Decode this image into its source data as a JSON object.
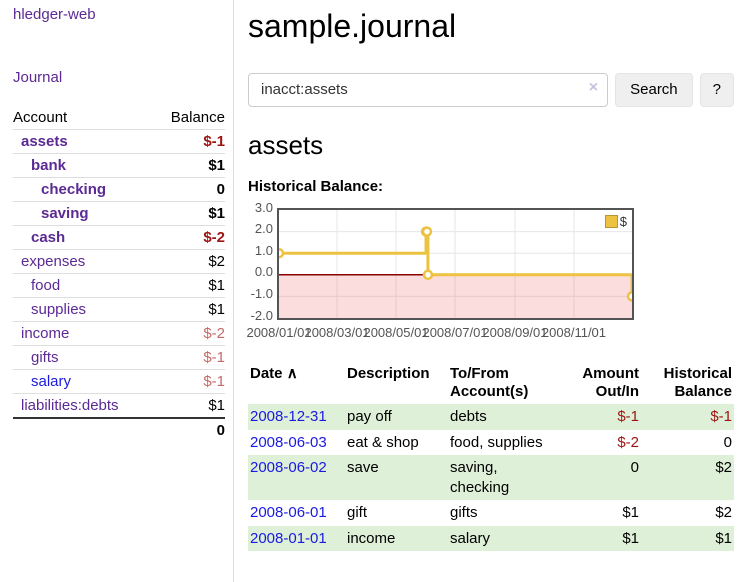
{
  "colors": {
    "purple": "#5b2a94",
    "link_blue": "#1a1ae0",
    "negative": "#9d1414",
    "negative_soft": "#c46a6a",
    "row_green": "#dff0d8",
    "series_gold": "#edc240",
    "negative_region": "rgba(236,98,98,0.22)",
    "zero_line": "#8b0000",
    "chart_border": "#545454",
    "grid": "#e6e6e6"
  },
  "sidebar": {
    "brand": "hledger-web",
    "nav": [
      {
        "label": "Journal"
      }
    ],
    "accounts_table": {
      "headers": [
        "Account",
        "Balance"
      ],
      "rows": [
        {
          "name": "assets",
          "indent": 1,
          "bold": true,
          "balance": "$-1",
          "balance_style": "negative"
        },
        {
          "name": "bank",
          "indent": 2,
          "bold": true,
          "balance": "$1",
          "balance_style": "normal"
        },
        {
          "name": "checking",
          "indent": 3,
          "bold": true,
          "balance": "0",
          "balance_style": "normal"
        },
        {
          "name": "saving",
          "indent": 3,
          "bold": true,
          "balance": "$1",
          "balance_style": "normal"
        },
        {
          "name": "cash",
          "indent": 2,
          "bold": true,
          "balance": "$-2",
          "balance_style": "negative"
        },
        {
          "name": "expenses",
          "indent": 1,
          "bold": false,
          "balance": "$2",
          "balance_style": "normal"
        },
        {
          "name": "food",
          "indent": 2,
          "bold": false,
          "balance": "$1",
          "balance_style": "normal"
        },
        {
          "name": "supplies",
          "indent": 2,
          "bold": false,
          "balance": "$1",
          "balance_style": "normal"
        },
        {
          "name": "income",
          "indent": 1,
          "bold": false,
          "balance": "$-2",
          "balance_style": "negative-soft"
        },
        {
          "name": "gifts",
          "indent": 2,
          "bold": false,
          "balance": "$-1",
          "balance_style": "negative-soft"
        },
        {
          "name": "salary",
          "indent": 2,
          "bold": false,
          "link_style": "blue",
          "balance": "$-1",
          "balance_style": "negative-soft"
        },
        {
          "name": "liabilities:debts",
          "indent": 1,
          "bold": false,
          "balance": "$1",
          "balance_style": "normal"
        }
      ],
      "total": "0"
    }
  },
  "header": {
    "title": "sample.journal"
  },
  "search": {
    "value": "inacct:assets",
    "clear_icon": "×",
    "button": "Search",
    "help_button": "?"
  },
  "account_page": {
    "heading": "assets",
    "chart_label": "Historical Balance:"
  },
  "chart_data": {
    "type": "line",
    "step": true,
    "title": "Historical Balance",
    "series": [
      {
        "name": "$",
        "points": [
          [
            "2008-01-01",
            1
          ],
          [
            "2008-06-01",
            2
          ],
          [
            "2008-06-02",
            2
          ],
          [
            "2008-06-03",
            0
          ],
          [
            "2008-12-31",
            -1
          ]
        ]
      }
    ],
    "x_range": [
      "2008-01-01",
      "2008-12-31"
    ],
    "ylim": [
      -2,
      3
    ],
    "yticks": [
      3,
      2,
      1,
      0,
      -1,
      -2
    ],
    "xticks": [
      {
        "date": "2008-01-01",
        "label": "2008/01/01"
      },
      {
        "date": "2008-03-01",
        "label": "2008/03/01"
      },
      {
        "date": "2008-05-01",
        "label": "2008/05/01"
      },
      {
        "date": "2008-07-01",
        "label": "2008/07/01"
      },
      {
        "date": "2008-09-01",
        "label": "2008/09/01"
      },
      {
        "date": "2008-11-01",
        "label": "2008/11/01"
      }
    ],
    "legend": [
      {
        "label": "$"
      }
    ],
    "legend_position": "top-right",
    "grid": true,
    "negative_region_shaded": true
  },
  "register_table": {
    "sort_icon": "∧",
    "headers": [
      "Date",
      "Description",
      "To/From Account(s)",
      "Amount Out/In",
      "Historical Balance"
    ],
    "rows": [
      {
        "date": "2008-12-31",
        "description": "pay off",
        "accounts": "debts",
        "amount": "$-1",
        "amount_style": "negative",
        "balance": "$-1",
        "balance_style": "negative",
        "shaded": true
      },
      {
        "date": "2008-06-03",
        "description": "eat & shop",
        "accounts": "food, supplies",
        "amount": "$-2",
        "amount_style": "negative",
        "balance": "0",
        "balance_style": "normal",
        "shaded": false
      },
      {
        "date": "2008-06-02",
        "description": "save",
        "accounts": "saving, checking",
        "amount": "0",
        "amount_style": "normal",
        "balance": "$2",
        "balance_style": "normal",
        "shaded": true
      },
      {
        "date": "2008-06-01",
        "description": "gift",
        "accounts": "gifts",
        "amount": "$1",
        "amount_style": "normal",
        "balance": "$2",
        "balance_style": "normal",
        "shaded": false
      },
      {
        "date": "2008-01-01",
        "description": "income",
        "accounts": "salary",
        "amount": "$1",
        "amount_style": "normal",
        "balance": "$1",
        "balance_style": "normal",
        "shaded": true
      }
    ]
  }
}
